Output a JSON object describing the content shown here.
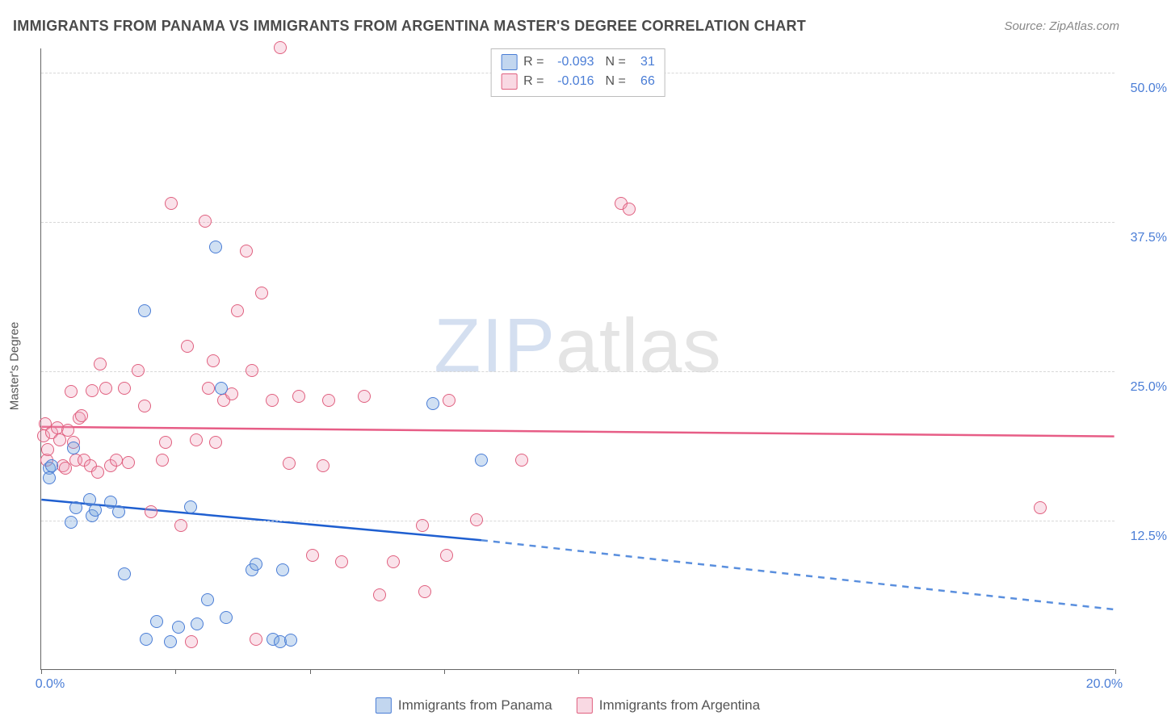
{
  "title": "IMMIGRANTS FROM PANAMA VS IMMIGRANTS FROM ARGENTINA MASTER'S DEGREE CORRELATION CHART",
  "source": "Source: ZipAtlas.com",
  "watermark": {
    "zip": "ZIP",
    "atlas": "atlas"
  },
  "y_axis_label": "Master's Degree",
  "chart": {
    "type": "scatter",
    "background_color": "#ffffff",
    "grid_color": "#d8d8d8",
    "axis_color": "#666666",
    "x_range": [
      0,
      20
    ],
    "y_range": [
      0,
      52
    ],
    "y_ticks": [
      12.5,
      25.0,
      37.5,
      50.0
    ],
    "y_tick_labels": [
      "12.5%",
      "25.0%",
      "37.5%",
      "50.0%"
    ],
    "x_ticks": [
      0,
      2.5,
      5,
      7.5,
      10,
      20
    ],
    "x_tick_labels": {
      "0": "0.0%",
      "20": "20.0%"
    },
    "point_radius": 8,
    "series": [
      {
        "name": "Immigrants from Panama",
        "color_fill": "rgba(120,165,220,0.35)",
        "color_stroke": "#4a7dd6",
        "r_value": "-0.093",
        "n_value": "31",
        "trend": {
          "x1": 0,
          "y1": 14.2,
          "x2": 8.2,
          "y2": 10.8,
          "solid_color": "#1f5fd0",
          "dash_to_x": 20,
          "dash_to_y": 5.0,
          "dash_color": "#5a8fde"
        },
        "points": [
          [
            0.15,
            16.8
          ],
          [
            0.15,
            16.0
          ],
          [
            0.2,
            17.0
          ],
          [
            0.55,
            12.3
          ],
          [
            0.6,
            18.5
          ],
          [
            0.65,
            13.5
          ],
          [
            0.9,
            14.2
          ],
          [
            0.95,
            12.8
          ],
          [
            1.0,
            13.3
          ],
          [
            1.3,
            14.0
          ],
          [
            1.45,
            13.2
          ],
          [
            1.55,
            8.0
          ],
          [
            1.92,
            30.0
          ],
          [
            1.95,
            2.5
          ],
          [
            2.15,
            4.0
          ],
          [
            2.4,
            2.3
          ],
          [
            2.55,
            3.5
          ],
          [
            2.78,
            13.6
          ],
          [
            2.9,
            3.8
          ],
          [
            3.1,
            5.8
          ],
          [
            3.25,
            35.3
          ],
          [
            3.35,
            23.5
          ],
          [
            3.45,
            4.3
          ],
          [
            3.92,
            8.3
          ],
          [
            4.0,
            8.8
          ],
          [
            4.32,
            2.5
          ],
          [
            4.45,
            2.3
          ],
          [
            4.5,
            8.3
          ],
          [
            4.65,
            2.4
          ],
          [
            7.3,
            22.2
          ],
          [
            8.2,
            17.5
          ]
        ]
      },
      {
        "name": "Immigrants from Argentina",
        "color_fill": "rgba(240,160,185,0.30)",
        "color_stroke": "#e0607f",
        "r_value": "-0.016",
        "n_value": "66",
        "trend": {
          "x1": 0,
          "y1": 20.3,
          "x2": 20,
          "y2": 19.5,
          "solid_color": "#e75d86"
        },
        "points": [
          [
            0.05,
            19.5
          ],
          [
            0.08,
            20.5
          ],
          [
            0.1,
            17.5
          ],
          [
            0.12,
            18.4
          ],
          [
            0.2,
            19.8
          ],
          [
            0.3,
            20.2
          ],
          [
            0.35,
            19.2
          ],
          [
            0.4,
            17.0
          ],
          [
            0.45,
            16.8
          ],
          [
            0.5,
            20.0
          ],
          [
            0.55,
            23.2
          ],
          [
            0.6,
            19.0
          ],
          [
            0.65,
            17.5
          ],
          [
            0.7,
            21.0
          ],
          [
            0.75,
            21.2
          ],
          [
            0.8,
            17.5
          ],
          [
            0.92,
            17.0
          ],
          [
            0.95,
            23.3
          ],
          [
            1.05,
            16.5
          ],
          [
            1.1,
            25.5
          ],
          [
            1.2,
            23.5
          ],
          [
            1.3,
            17.0
          ],
          [
            1.4,
            17.5
          ],
          [
            1.55,
            23.5
          ],
          [
            1.62,
            17.3
          ],
          [
            1.8,
            25.0
          ],
          [
            1.92,
            22.0
          ],
          [
            2.05,
            13.2
          ],
          [
            2.25,
            17.5
          ],
          [
            2.32,
            19.0
          ],
          [
            2.42,
            39.0
          ],
          [
            2.6,
            12.0
          ],
          [
            2.72,
            27.0
          ],
          [
            2.88,
            19.2
          ],
          [
            3.05,
            37.5
          ],
          [
            3.12,
            23.5
          ],
          [
            3.2,
            25.8
          ],
          [
            3.25,
            19.0
          ],
          [
            3.4,
            22.5
          ],
          [
            3.55,
            23.0
          ],
          [
            3.65,
            30.0
          ],
          [
            3.82,
            35.0
          ],
          [
            3.92,
            25.0
          ],
          [
            4.1,
            31.5
          ],
          [
            4.3,
            22.5
          ],
          [
            4.45,
            52.0
          ],
          [
            4.62,
            17.2
          ],
          [
            4.8,
            22.8
          ],
          [
            5.05,
            9.5
          ],
          [
            5.25,
            17.0
          ],
          [
            5.35,
            22.5
          ],
          [
            5.6,
            9.0
          ],
          [
            6.02,
            22.8
          ],
          [
            6.3,
            6.2
          ],
          [
            6.55,
            9.0
          ],
          [
            7.1,
            12.0
          ],
          [
            7.15,
            6.5
          ],
          [
            7.55,
            9.5
          ],
          [
            7.6,
            22.5
          ],
          [
            8.1,
            12.5
          ],
          [
            8.95,
            17.5
          ],
          [
            10.8,
            39.0
          ],
          [
            10.95,
            38.5
          ],
          [
            18.6,
            13.5
          ],
          [
            4.0,
            2.5
          ],
          [
            2.8,
            2.3
          ]
        ]
      }
    ]
  },
  "legend_top": {
    "r_label": "R =",
    "n_label": "N ="
  },
  "legend_bottom": {
    "series1": "Immigrants from Panama",
    "series2": "Immigrants from Argentina"
  }
}
